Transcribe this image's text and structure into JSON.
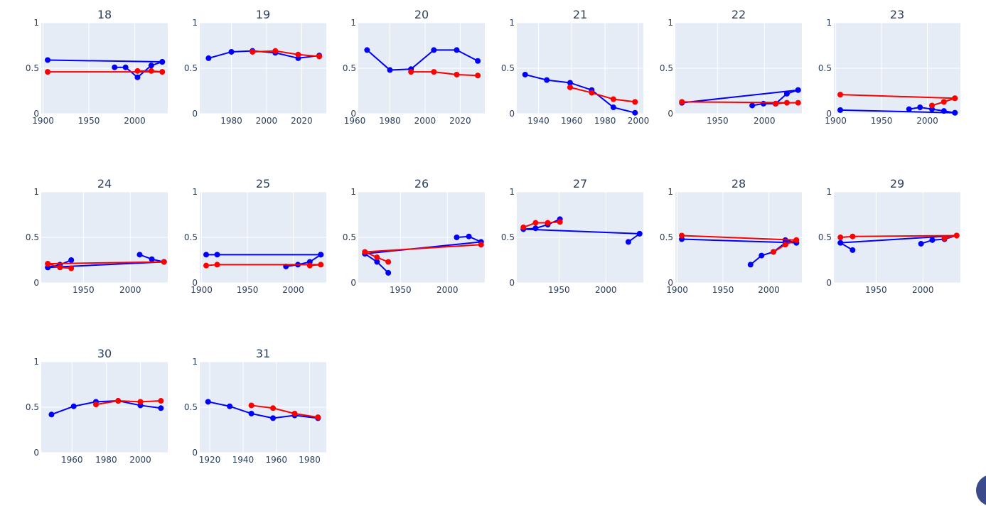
{
  "colors": {
    "plot_bg": "#e5ecf6",
    "grid": "#ffffff",
    "blue": "#0000ff",
    "red": "#ff0000",
    "text": "#2a3f5f"
  },
  "chart_data": [
    {
      "type": "line",
      "title": "18",
      "xlim": [
        1898,
        2036
      ],
      "ylim": [
        0,
        1
      ],
      "xticks": [
        1900,
        1950,
        2000
      ],
      "yticks": [
        0,
        0.5,
        1
      ],
      "ytick_labels": [
        "0",
        "0.5",
        "1"
      ],
      "series": [
        {
          "color": "blue",
          "points": [
            [
              1905,
              0.59
            ],
            [
              2030,
              0.57
            ],
            [
              2030,
              0.57
            ],
            [
              2018,
              0.53
            ],
            [
              2003,
              0.4
            ],
            [
              1990,
              0.51
            ],
            [
              1978,
              0.51
            ]
          ]
        },
        {
          "color": "red",
          "points": [
            [
              1905,
              0.46
            ],
            [
              2030,
              0.46
            ],
            [
              2018,
              0.47
            ],
            [
              2003,
              0.47
            ]
          ]
        }
      ]
    },
    {
      "type": "line",
      "title": "19",
      "xlim": [
        1962,
        2034
      ],
      "ylim": [
        0,
        1
      ],
      "xticks": [
        1980,
        2000,
        2020
      ],
      "yticks": [
        0,
        0.5,
        1
      ],
      "ytick_labels": [
        "0",
        "0.5",
        "1"
      ],
      "series": [
        {
          "color": "blue",
          "points": [
            [
              1967,
              0.61
            ],
            [
              1980,
              0.68
            ],
            [
              1992,
              0.69
            ],
            [
              2005,
              0.67
            ],
            [
              2018,
              0.61
            ],
            [
              2030,
              0.64
            ]
          ]
        },
        {
          "color": "red",
          "points": [
            [
              1992,
              0.68
            ],
            [
              2005,
              0.69
            ],
            [
              2018,
              0.65
            ],
            [
              2030,
              0.63
            ]
          ]
        }
      ]
    },
    {
      "type": "line",
      "title": "20",
      "xlim": [
        1962,
        2034
      ],
      "ylim": [
        0,
        1
      ],
      "xticks": [
        1960,
        1980,
        2000,
        2020
      ],
      "yticks": [
        0,
        0.5,
        1
      ],
      "ytick_labels": [
        "0",
        "0.5",
        "1"
      ],
      "series": [
        {
          "color": "blue",
          "points": [
            [
              1967,
              0.7
            ],
            [
              1980,
              0.48
            ],
            [
              1992,
              0.49
            ],
            [
              2005,
              0.7
            ],
            [
              2018,
              0.7
            ],
            [
              2030,
              0.58
            ]
          ]
        },
        {
          "color": "red",
          "points": [
            [
              1992,
              0.46
            ],
            [
              2005,
              0.46
            ],
            [
              2018,
              0.43
            ],
            [
              2030,
              0.42
            ]
          ]
        }
      ]
    },
    {
      "type": "line",
      "title": "21",
      "xlim": [
        1927,
        2003
      ],
      "ylim": [
        0,
        1
      ],
      "xticks": [
        1940,
        1960,
        1980,
        2000
      ],
      "yticks": [
        0,
        0.5,
        1
      ],
      "ytick_labels": [
        "0",
        "0.5",
        "1"
      ],
      "series": [
        {
          "color": "blue",
          "points": [
            [
              1932,
              0.43
            ],
            [
              1945,
              0.37
            ],
            [
              1959,
              0.34
            ],
            [
              1972,
              0.26
            ],
            [
              1985,
              0.07
            ],
            [
              1998,
              0.01
            ]
          ]
        },
        {
          "color": "red",
          "points": [
            [
              1959,
              0.29
            ],
            [
              1972,
              0.23
            ],
            [
              1985,
              0.16
            ],
            [
              1998,
              0.13
            ]
          ]
        }
      ]
    },
    {
      "type": "line",
      "title": "22",
      "xlim": [
        1905,
        2040
      ],
      "ylim": [
        0,
        1
      ],
      "xticks": [
        1950,
        2000
      ],
      "yticks": [
        0,
        0.5,
        1
      ],
      "ytick_labels": [
        "0",
        "0.5",
        "1"
      ],
      "series": [
        {
          "color": "blue",
          "points": [
            [
              1912,
              0.12
            ],
            [
              2036,
              0.26
            ],
            [
              2036,
              0.26
            ],
            [
              2024,
              0.22
            ],
            [
              2012,
              0.11
            ],
            [
              1999,
              0.11
            ],
            [
              1987,
              0.09
            ]
          ]
        },
        {
          "color": "red",
          "points": [
            [
              1912,
              0.13
            ],
            [
              2036,
              0.12
            ],
            [
              2024,
              0.12
            ],
            [
              2012,
              0.11
            ]
          ]
        }
      ]
    },
    {
      "type": "line",
      "title": "23",
      "xlim": [
        1898,
        2036
      ],
      "ylim": [
        0,
        1
      ],
      "xticks": [
        1900,
        1950,
        2000
      ],
      "yticks": [
        0,
        0.5,
        1
      ],
      "ytick_labels": [
        "0",
        "0.5",
        "1"
      ],
      "series": [
        {
          "color": "blue",
          "points": [
            [
              1905,
              0.04
            ],
            [
              2030,
              0.01
            ],
            [
              2030,
              0.01
            ],
            [
              2018,
              0.03
            ],
            [
              2005,
              0.05
            ],
            [
              1992,
              0.07
            ],
            [
              1980,
              0.05
            ]
          ]
        },
        {
          "color": "red",
          "points": [
            [
              1905,
              0.21
            ],
            [
              2030,
              0.17
            ],
            [
              2030,
              0.17
            ],
            [
              2018,
              0.13
            ],
            [
              2005,
              0.09
            ]
          ]
        }
      ]
    },
    {
      "type": "line",
      "title": "24",
      "xlim": [
        1905,
        2040
      ],
      "ylim": [
        0,
        1
      ],
      "xticks": [
        1950,
        2000
      ],
      "yticks": [
        0,
        0.5,
        1
      ],
      "ytick_labels": [
        "0",
        "0.5",
        "1"
      ],
      "series": [
        {
          "color": "blue",
          "points": [
            [
              1912,
              0.17
            ],
            [
              2036,
              0.23
            ],
            [
              2036,
              0.23
            ],
            [
              2023,
              0.26
            ],
            [
              2010,
              0.31
            ]
          ]
        },
        {
          "color": "blue",
          "points": [
            [
              1912,
              0.17
            ],
            [
              1925,
              0.2
            ],
            [
              1937,
              0.25
            ]
          ]
        },
        {
          "color": "red",
          "points": [
            [
              1912,
              0.21
            ],
            [
              2036,
              0.23
            ]
          ]
        },
        {
          "color": "red",
          "points": [
            [
              1912,
              0.21
            ],
            [
              1925,
              0.17
            ],
            [
              1937,
              0.16
            ]
          ]
        }
      ]
    },
    {
      "type": "line",
      "title": "25",
      "xlim": [
        1898,
        2036
      ],
      "ylim": [
        0,
        1
      ],
      "xticks": [
        1900,
        1950,
        2000
      ],
      "yticks": [
        0,
        0.5,
        1
      ],
      "ytick_labels": [
        "0",
        "0.5",
        "1"
      ],
      "series": [
        {
          "color": "blue",
          "points": [
            [
              1905,
              0.31
            ],
            [
              1917,
              0.31
            ],
            [
              2030,
              0.31
            ],
            [
              2030,
              0.31
            ],
            [
              2018,
              0.23
            ],
            [
              2005,
              0.2
            ],
            [
              1992,
              0.18
            ]
          ]
        },
        {
          "color": "red",
          "points": [
            [
              1905,
              0.19
            ],
            [
              1917,
              0.2
            ],
            [
              2030,
              0.2
            ],
            [
              2018,
              0.19
            ]
          ]
        }
      ]
    },
    {
      "type": "line",
      "title": "26",
      "xlim": [
        1905,
        2040
      ],
      "ylim": [
        0,
        1
      ],
      "xticks": [
        1950,
        2000
      ],
      "yticks": [
        0,
        0.5,
        1
      ],
      "ytick_labels": [
        "0",
        "0.5",
        "1"
      ],
      "series": [
        {
          "color": "blue",
          "points": [
            [
              2010,
              0.5
            ],
            [
              2023,
              0.51
            ],
            [
              2036,
              0.45
            ],
            [
              1912,
              0.32
            ],
            [
              1925,
              0.23
            ],
            [
              1937,
              0.11
            ]
          ]
        },
        {
          "color": "red",
          "points": [
            [
              2036,
              0.42
            ],
            [
              1912,
              0.34
            ],
            [
              1925,
              0.28
            ],
            [
              1937,
              0.23
            ]
          ]
        }
      ]
    },
    {
      "type": "line",
      "title": "27",
      "xlim": [
        1905,
        2040
      ],
      "ylim": [
        0,
        1
      ],
      "xticks": [
        1950,
        2000
      ],
      "yticks": [
        0,
        0.5,
        1
      ],
      "ytick_labels": [
        "0",
        "0.5",
        "1"
      ],
      "series": [
        {
          "color": "blue",
          "points": [
            [
              2024,
              0.45
            ],
            [
              2036,
              0.54
            ],
            [
              1912,
              0.59
            ],
            [
              1925,
              0.6
            ],
            [
              1938,
              0.64
            ],
            [
              1951,
              0.7
            ]
          ]
        },
        {
          "color": "red",
          "points": [
            [
              1912,
              0.61
            ],
            [
              1925,
              0.66
            ],
            [
              1938,
              0.66
            ],
            [
              1951,
              0.67
            ]
          ]
        }
      ]
    },
    {
      "type": "line",
      "title": "28",
      "xlim": [
        1898,
        2036
      ],
      "ylim": [
        0,
        1
      ],
      "xticks": [
        1900,
        1950,
        2000
      ],
      "yticks": [
        0,
        0.5,
        1
      ],
      "ytick_labels": [
        "0",
        "0.5",
        "1"
      ],
      "series": [
        {
          "color": "blue",
          "points": [
            [
              1905,
              0.48
            ],
            [
              2030,
              0.44
            ],
            [
              2030,
              0.44
            ],
            [
              2018,
              0.47
            ]
          ]
        },
        {
          "color": "blue",
          "points": [
            [
              1980,
              0.2
            ],
            [
              1992,
              0.3
            ],
            [
              2005,
              0.34
            ],
            [
              2018,
              0.44
            ]
          ]
        },
        {
          "color": "red",
          "points": [
            [
              1905,
              0.52
            ],
            [
              2030,
              0.47
            ],
            [
              2030,
              0.47
            ],
            [
              2018,
              0.42
            ],
            [
              2005,
              0.34
            ]
          ]
        }
      ]
    },
    {
      "type": "line",
      "title": "29",
      "xlim": [
        1905,
        2040
      ],
      "ylim": [
        0,
        1
      ],
      "xticks": [
        1950,
        2000
      ],
      "yticks": [
        0,
        0.5,
        1
      ],
      "ytick_labels": [
        "0",
        "0.5",
        "1"
      ],
      "series": [
        {
          "color": "blue",
          "points": [
            [
              1912,
              0.44
            ],
            [
              1925,
              0.36
            ]
          ]
        },
        {
          "color": "blue",
          "points": [
            [
              1912,
              0.44
            ],
            [
              2036,
              0.52
            ],
            [
              2023,
              0.48
            ],
            [
              2010,
              0.47
            ],
            [
              1998,
              0.43
            ]
          ]
        },
        {
          "color": "red",
          "points": [
            [
              1912,
              0.5
            ],
            [
              1925,
              0.51
            ],
            [
              2036,
              0.52
            ],
            [
              2023,
              0.49
            ]
          ]
        }
      ]
    },
    {
      "type": "line",
      "title": "30",
      "xlim": [
        1942,
        2016
      ],
      "ylim": [
        0,
        1
      ],
      "xticks": [
        1960,
        1980,
        2000
      ],
      "yticks": [
        0,
        0.5,
        1
      ],
      "ytick_labels": [
        "0",
        "0.5",
        "1"
      ],
      "series": [
        {
          "color": "blue",
          "points": [
            [
              1948,
              0.42
            ],
            [
              1961,
              0.51
            ],
            [
              1974,
              0.56
            ],
            [
              1987,
              0.57
            ],
            [
              2000,
              0.52
            ],
            [
              2012,
              0.49
            ]
          ]
        },
        {
          "color": "red",
          "points": [
            [
              1974,
              0.53
            ],
            [
              1987,
              0.57
            ],
            [
              2000,
              0.56
            ],
            [
              2012,
              0.57
            ]
          ]
        }
      ]
    },
    {
      "type": "line",
      "title": "31",
      "xlim": [
        1914,
        1990
      ],
      "ylim": [
        0,
        1
      ],
      "xticks": [
        1920,
        1940,
        1960,
        1980
      ],
      "yticks": [
        0,
        0.5,
        1
      ],
      "ytick_labels": [
        "0",
        "0.5",
        "1"
      ],
      "series": [
        {
          "color": "blue",
          "points": [
            [
              1919,
              0.56
            ],
            [
              1932,
              0.51
            ],
            [
              1945,
              0.43
            ],
            [
              1958,
              0.38
            ],
            [
              1971,
              0.41
            ],
            [
              1985,
              0.38
            ]
          ]
        },
        {
          "color": "red",
          "points": [
            [
              1945,
              0.52
            ],
            [
              1958,
              0.49
            ],
            [
              1971,
              0.43
            ],
            [
              1985,
              0.39
            ]
          ]
        }
      ]
    }
  ]
}
